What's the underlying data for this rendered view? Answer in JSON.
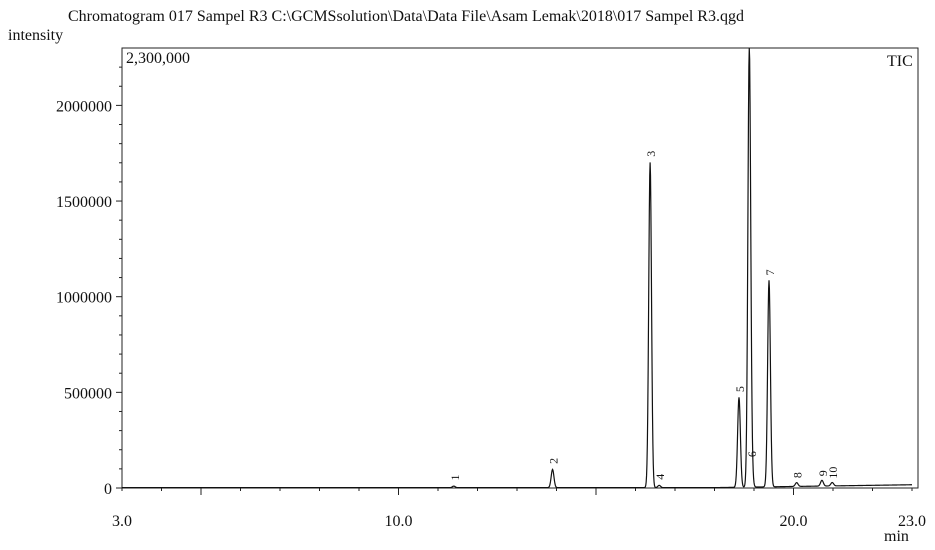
{
  "title": "Chromatogram 017 Sampel R3 C:\\GCMSsolution\\Data\\Data File\\Asam Lemak\\2018\\017 Sampel R3.qgd",
  "ylabel": "intensity",
  "ymax_label": "2,300,000",
  "trace_label": "TIC",
  "x_unit": "min",
  "chart_data": {
    "type": "line",
    "xlim": [
      3.0,
      23.0
    ],
    "ylim": [
      0,
      2300000
    ],
    "x_ticks": [
      3.0,
      10.0,
      20.0,
      23.0
    ],
    "x_tick_labels": [
      "3.0",
      "10.0",
      "20.0",
      "23.0"
    ],
    "y_ticks": [
      0,
      500000,
      1000000,
      1500000,
      2000000
    ],
    "y_tick_labels": [
      "0",
      "500000",
      "1000000",
      "1500000",
      "2000000"
    ],
    "peaks": [
      {
        "label": "1",
        "rt": 11.4,
        "height": 8000
      },
      {
        "label": "2",
        "rt": 13.9,
        "height": 95000
      },
      {
        "label": "3",
        "rt": 16.37,
        "height": 1700000
      },
      {
        "label": "4",
        "rt": 16.6,
        "height": 12000
      },
      {
        "label": "5",
        "rt": 18.62,
        "height": 470000
      },
      {
        "label": "6",
        "rt": 18.93,
        "height": 130000
      },
      {
        "label": "7",
        "rt": 19.38,
        "height": 1080000
      },
      {
        "label": "8",
        "rt": 20.08,
        "height": 20000
      },
      {
        "label": "9",
        "rt": 20.72,
        "height": 30000
      },
      {
        "label": "10",
        "rt": 20.98,
        "height": 18000
      }
    ],
    "unlabeled_peaks": [
      {
        "rt": 18.88,
        "height": 2260000
      }
    ]
  }
}
